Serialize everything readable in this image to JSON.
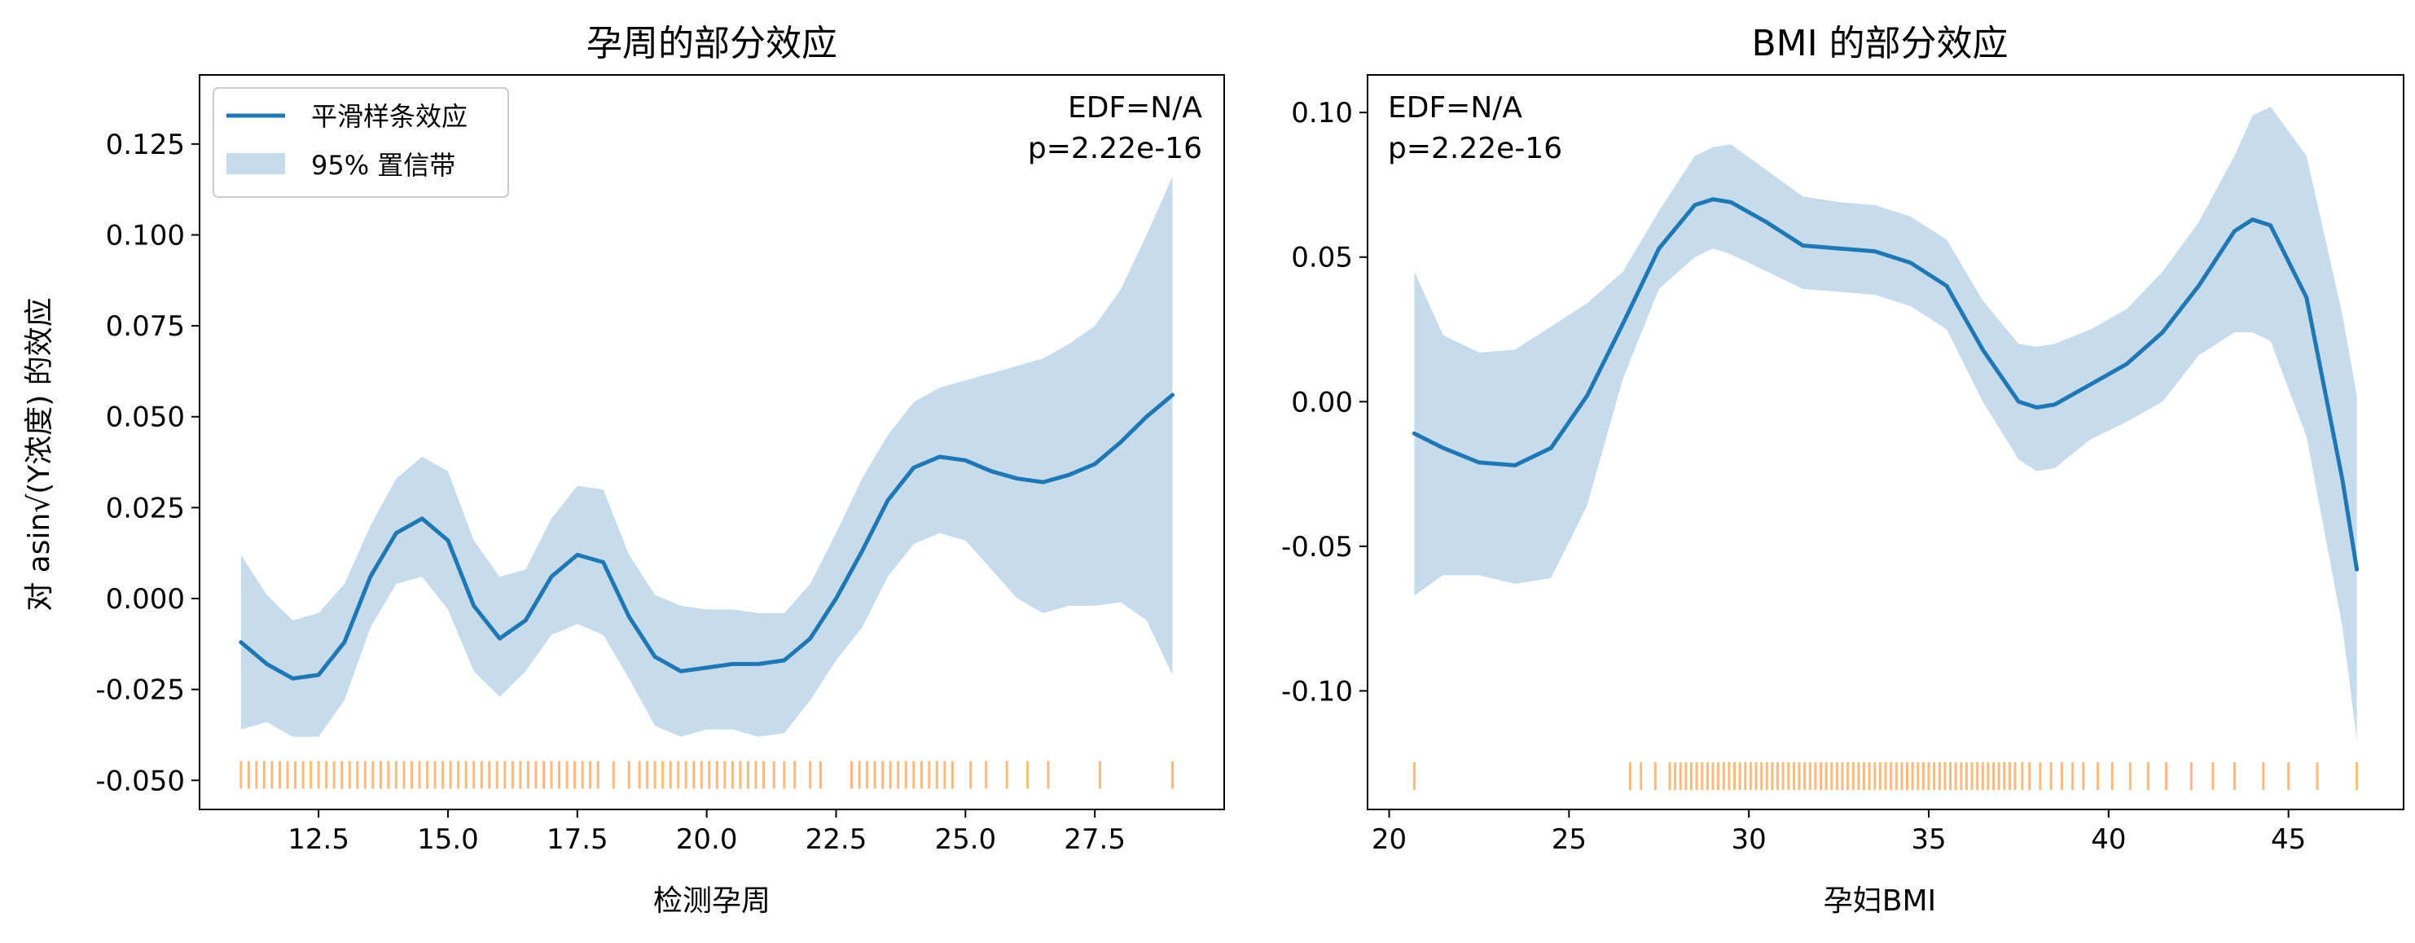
{
  "chart_data": [
    {
      "type": "line",
      "title": "孕周的部分效应",
      "xlabel": "检测孕周",
      "ylabel": "对 asin√(Y浓度) 的效应",
      "xlim": [
        10.2,
        30.0
      ],
      "ylim": [
        -0.058,
        0.144
      ],
      "xticks": [
        "12.5",
        "15.0",
        "17.5",
        "20.0",
        "22.5",
        "25.0",
        "27.5"
      ],
      "yticks": [
        "-0.050",
        "-0.025",
        "0.000",
        "0.025",
        "0.050",
        "0.075",
        "0.100",
        "0.125"
      ],
      "annotation": [
        "EDF=N/A",
        "p=2.22e-16"
      ],
      "legend": {
        "placement": "upper-left",
        "entries": [
          "平滑样条效应",
          "95% 置信带"
        ]
      },
      "series": [
        {
          "name": "平滑样条效应",
          "color": "#1f77b4",
          "x": [
            11.0,
            11.5,
            12.0,
            12.5,
            13.0,
            13.5,
            14.0,
            14.5,
            15.0,
            15.5,
            16.0,
            16.5,
            17.0,
            17.5,
            18.0,
            18.5,
            19.0,
            19.5,
            20.0,
            20.5,
            21.0,
            21.5,
            22.0,
            22.5,
            23.0,
            23.5,
            24.0,
            24.5,
            25.0,
            25.5,
            26.0,
            26.5,
            27.0,
            27.5,
            28.0,
            28.5,
            29.0
          ],
          "y": [
            -0.012,
            -0.018,
            -0.022,
            -0.021,
            -0.012,
            0.006,
            0.018,
            0.022,
            0.016,
            -0.002,
            -0.011,
            -0.006,
            0.006,
            0.012,
            0.01,
            -0.005,
            -0.016,
            -0.02,
            -0.019,
            -0.018,
            -0.018,
            -0.017,
            -0.011,
            0.0,
            0.013,
            0.027,
            0.036,
            0.039,
            0.038,
            0.035,
            0.033,
            0.032,
            0.034,
            0.037,
            0.043,
            0.05,
            0.056
          ]
        },
        {
          "name": "95% 置信带",
          "color": "#c6dbec",
          "x": [
            11.0,
            11.5,
            12.0,
            12.5,
            13.0,
            13.5,
            14.0,
            14.5,
            15.0,
            15.5,
            16.0,
            16.5,
            17.0,
            17.5,
            18.0,
            18.5,
            19.0,
            19.5,
            20.0,
            20.5,
            21.0,
            21.5,
            22.0,
            22.5,
            23.0,
            23.5,
            24.0,
            24.5,
            25.0,
            25.5,
            26.0,
            26.5,
            27.0,
            27.5,
            28.0,
            28.5,
            29.0
          ],
          "upper": [
            0.012,
            0.001,
            -0.006,
            -0.004,
            0.004,
            0.02,
            0.033,
            0.039,
            0.035,
            0.016,
            0.006,
            0.008,
            0.022,
            0.031,
            0.03,
            0.012,
            0.001,
            -0.002,
            -0.003,
            -0.003,
            -0.004,
            -0.004,
            0.004,
            0.018,
            0.033,
            0.045,
            0.054,
            0.058,
            0.06,
            0.062,
            0.064,
            0.066,
            0.07,
            0.075,
            0.085,
            0.1,
            0.116
          ],
          "lower": [
            -0.036,
            -0.034,
            -0.038,
            -0.038,
            -0.028,
            -0.008,
            0.004,
            0.006,
            -0.003,
            -0.02,
            -0.027,
            -0.02,
            -0.01,
            -0.007,
            -0.01,
            -0.022,
            -0.035,
            -0.038,
            -0.036,
            -0.036,
            -0.038,
            -0.037,
            -0.028,
            -0.017,
            -0.008,
            0.006,
            0.015,
            0.018,
            0.016,
            0.008,
            0.0,
            -0.004,
            -0.002,
            -0.002,
            -0.001,
            -0.006,
            -0.021
          ]
        }
      ],
      "rug": {
        "color": "#ff7f0e",
        "y": -0.0485,
        "x": [
          11.0,
          11.15,
          11.3,
          11.45,
          11.6,
          11.75,
          11.9,
          12.05,
          12.2,
          12.35,
          12.5,
          12.65,
          12.8,
          12.95,
          13.1,
          13.25,
          13.4,
          13.55,
          13.7,
          13.85,
          14.0,
          14.15,
          14.3,
          14.45,
          14.6,
          14.75,
          14.9,
          15.05,
          15.2,
          15.35,
          15.5,
          15.65,
          15.8,
          15.95,
          16.1,
          16.25,
          16.4,
          16.55,
          16.7,
          16.85,
          17.0,
          17.15,
          17.3,
          17.45,
          17.6,
          17.75,
          17.9,
          18.2,
          18.5,
          18.7,
          18.85,
          19.0,
          19.15,
          19.3,
          19.45,
          19.6,
          19.75,
          19.9,
          20.05,
          20.2,
          20.35,
          20.5,
          20.65,
          20.8,
          20.95,
          21.1,
          21.3,
          21.5,
          21.7,
          22.0,
          22.2,
          22.8,
          22.95,
          23.1,
          23.25,
          23.4,
          23.55,
          23.7,
          23.85,
          24.0,
          24.15,
          24.3,
          24.45,
          24.6,
          24.75,
          25.1,
          25.4,
          25.8,
          26.2,
          26.6,
          27.6,
          29.0
        ]
      }
    },
    {
      "type": "line",
      "title": "BMI 的部分效应",
      "xlabel": "孕妇BMI",
      "ylabel": "",
      "xlim": [
        19.4,
        48.2
      ],
      "ylim": [
        -0.141,
        0.113
      ],
      "xticks": [
        "20",
        "25",
        "30",
        "35",
        "40",
        "45"
      ],
      "yticks": [
        "-0.10",
        "-0.05",
        "0.00",
        "0.05",
        "0.10"
      ],
      "annotation": [
        "EDF=N/A",
        "p=2.22e-16"
      ],
      "series": [
        {
          "name": "平滑样条效应",
          "color": "#1f77b4",
          "x": [
            20.7,
            21.5,
            22.5,
            23.5,
            24.5,
            25.5,
            26.5,
            27.5,
            28.5,
            29.0,
            29.5,
            30.5,
            31.5,
            32.5,
            33.5,
            34.5,
            35.5,
            36.5,
            37.5,
            38.0,
            38.5,
            39.5,
            40.5,
            41.5,
            42.5,
            43.5,
            44.0,
            44.5,
            45.5,
            46.5,
            46.9
          ],
          "y": [
            -0.011,
            -0.016,
            -0.021,
            -0.022,
            -0.016,
            0.002,
            0.027,
            0.053,
            0.068,
            0.07,
            0.069,
            0.062,
            0.054,
            0.053,
            0.052,
            0.048,
            0.04,
            0.018,
            0.0,
            -0.002,
            -0.001,
            0.006,
            0.013,
            0.024,
            0.04,
            0.059,
            0.063,
            0.061,
            0.036,
            -0.027,
            -0.058
          ]
        },
        {
          "name": "95% 置信带",
          "color": "#c6dbec",
          "x": [
            20.7,
            21.5,
            22.5,
            23.5,
            24.5,
            25.5,
            26.5,
            27.5,
            28.5,
            29.0,
            29.5,
            30.5,
            31.5,
            32.5,
            33.5,
            34.5,
            35.5,
            36.5,
            37.5,
            38.0,
            38.5,
            39.5,
            40.5,
            41.5,
            42.5,
            43.5,
            44.0,
            44.5,
            45.5,
            46.5,
            46.9
          ],
          "upper": [
            0.045,
            0.023,
            0.017,
            0.018,
            0.026,
            0.034,
            0.045,
            0.066,
            0.085,
            0.088,
            0.089,
            0.08,
            0.071,
            0.069,
            0.068,
            0.064,
            0.056,
            0.035,
            0.02,
            0.019,
            0.02,
            0.025,
            0.032,
            0.045,
            0.062,
            0.085,
            0.099,
            0.102,
            0.085,
            0.03,
            0.002
          ],
          "lower": [
            -0.067,
            -0.06,
            -0.06,
            -0.063,
            -0.061,
            -0.036,
            0.008,
            0.039,
            0.05,
            0.053,
            0.051,
            0.045,
            0.039,
            0.038,
            0.037,
            0.033,
            0.025,
            0.0,
            -0.02,
            -0.024,
            -0.023,
            -0.013,
            -0.007,
            0.0,
            0.016,
            0.024,
            0.024,
            0.021,
            -0.012,
            -0.078,
            -0.117
          ]
        }
      ],
      "rug": {
        "color": "#ff7f0e",
        "y": -0.1295,
        "x": [
          20.7,
          26.7,
          27.0,
          27.4,
          27.8,
          27.95,
          28.1,
          28.25,
          28.4,
          28.55,
          28.7,
          28.85,
          29.0,
          29.15,
          29.3,
          29.45,
          29.6,
          29.75,
          29.9,
          30.05,
          30.2,
          30.35,
          30.5,
          30.65,
          30.8,
          30.95,
          31.1,
          31.25,
          31.4,
          31.55,
          31.7,
          31.85,
          32.0,
          32.15,
          32.3,
          32.45,
          32.6,
          32.75,
          32.9,
          33.05,
          33.2,
          33.35,
          33.5,
          33.65,
          33.8,
          33.95,
          34.1,
          34.25,
          34.4,
          34.55,
          34.7,
          34.85,
          35.0,
          35.15,
          35.3,
          35.45,
          35.6,
          35.75,
          35.9,
          36.05,
          36.2,
          36.35,
          36.5,
          36.65,
          36.8,
          36.95,
          37.1,
          37.25,
          37.4,
          37.6,
          37.8,
          38.1,
          38.4,
          38.7,
          39.0,
          39.3,
          39.7,
          40.1,
          40.6,
          41.1,
          41.6,
          42.3,
          42.9,
          43.5,
          44.3,
          45.0,
          45.8,
          46.9
        ]
      }
    }
  ]
}
